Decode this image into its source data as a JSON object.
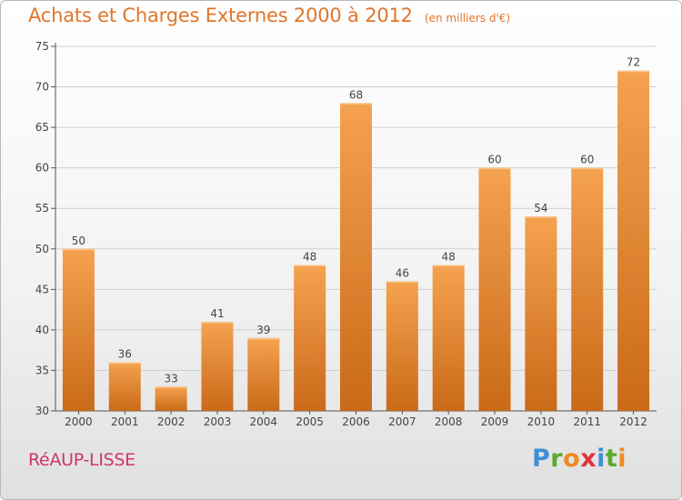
{
  "header": {
    "title": "Achats et Charges Externes 2000 à 2012",
    "subtitle": "(en milliers d'€)"
  },
  "footer": {
    "commune": "RéAUP-LISSE",
    "logo_letters": [
      {
        "ch": "P",
        "color": "#3e8fd6"
      },
      {
        "ch": "r",
        "color": "#5aaa2c"
      },
      {
        "ch": "o",
        "color": "#f08a20"
      },
      {
        "ch": "x",
        "color": "#e0333f"
      },
      {
        "ch": "i",
        "color": "#3e8fd6"
      },
      {
        "ch": "t",
        "color": "#5aaa2c"
      },
      {
        "ch": "i",
        "color": "#f08a20"
      }
    ]
  },
  "colors": {
    "bar_top": "#f5a24f",
    "bar_bottom": "#c96a18",
    "grid": "#cfcfcf",
    "axis": "#555555",
    "title": "#e0762a",
    "commune": "#d0356a"
  },
  "chart_data": {
    "type": "bar",
    "title": "Achats et Charges Externes 2000 à 2012",
    "subtitle": "(en milliers d'€)",
    "categories": [
      "2000",
      "2001",
      "2002",
      "2003",
      "2004",
      "2005",
      "2006",
      "2007",
      "2008",
      "2009",
      "2010",
      "2011",
      "2012"
    ],
    "values": [
      50,
      36,
      33,
      41,
      39,
      48,
      68,
      46,
      48,
      60,
      54,
      60,
      72
    ],
    "ylim": [
      30,
      75
    ],
    "yticks": [
      30,
      35,
      40,
      45,
      50,
      55,
      60,
      65,
      70,
      75
    ],
    "grid": true,
    "data_labels": true
  }
}
